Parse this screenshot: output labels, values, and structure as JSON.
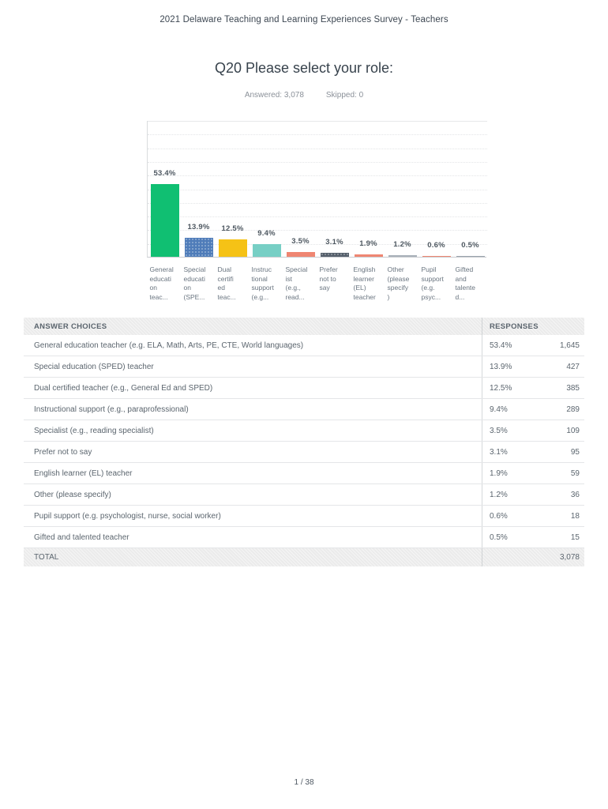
{
  "page": {
    "survey_title": "2021 Delaware Teaching and Learning Experiences Survey - Teachers",
    "question_title": "Q20 Please select your role:",
    "answered_label": "Answered: 3,078",
    "skipped_label": "Skipped: 0",
    "footer_page_number": "1 / 38"
  },
  "chart_data": {
    "type": "bar",
    "title": "Q20 Please select your role:",
    "categories": [
      "General education teacher (e.g. ELA, Math, Arts, PE, CTE, World languages)",
      "Special education (SPED) teacher",
      "Dual certified teacher (e.g., General Ed and SPED)",
      "Instructional support (e.g., paraprofessional)",
      "Specialist (e.g., reading specialist)",
      "Prefer not to say",
      "English learner (EL) teacher",
      "Other (please specify)",
      "Pupil support (e.g. psychologist, nurse, social worker)",
      "Gifted and talented teacher"
    ],
    "tick_labels": [
      "General\neducati\non\nteac...",
      "Special\neducati\non\n(SPE...",
      "Dual\ncertifi\ned\nteac...",
      "Instruc\ntional\nsupport\n(e.g...",
      "Special\nist\n(e.g.,\nread...",
      "Prefer\nnot to\nsay",
      "English\nlearner\n(EL)\nteacher",
      "Other\n(please\nspecify\n)",
      "Pupil\nsupport\n(e.g.\npsyc...",
      "Gifted\nand\ntalente\nd..."
    ],
    "values": [
      53.4,
      13.9,
      12.5,
      9.4,
      3.5,
      3.1,
      1.9,
      1.2,
      0.6,
      0.5
    ],
    "colors": [
      "#10bf72",
      "#4f7cb9",
      "#f5c216",
      "#77cfc5",
      "#ef8672",
      "#555f6b",
      "#ef8672",
      "#a9b1b9",
      "#ef8672",
      "#9aa3ac"
    ],
    "patterned_bars": [
      1,
      5
    ],
    "xlabel": "",
    "ylabel": "",
    "ylim": [
      0,
      100
    ],
    "y_tick_step": 20,
    "grid_step": 10,
    "grid": true,
    "legend": false
  },
  "table": {
    "header_answer": "ANSWER CHOICES",
    "header_responses": "RESPONSES",
    "rows": [
      {
        "answer": "General education teacher (e.g. ELA, Math, Arts, PE, CTE, World languages)",
        "percent": "53.4%",
        "count": "1,645"
      },
      {
        "answer": "Special education (SPED) teacher",
        "percent": "13.9%",
        "count": "427"
      },
      {
        "answer": "Dual certified teacher (e.g., General Ed and SPED)",
        "percent": "12.5%",
        "count": "385"
      },
      {
        "answer": "Instructional support (e.g., paraprofessional)",
        "percent": "9.4%",
        "count": "289"
      },
      {
        "answer": "Specialist (e.g., reading specialist)",
        "percent": "3.5%",
        "count": "109"
      },
      {
        "answer": "Prefer not to say",
        "percent": "3.1%",
        "count": "95"
      },
      {
        "answer": "English learner (EL) teacher",
        "percent": "1.9%",
        "count": "59"
      },
      {
        "answer": "Other (please specify)",
        "percent": "1.2%",
        "count": "36"
      },
      {
        "answer": "Pupil support (e.g. psychologist, nurse, social worker)",
        "percent": "0.6%",
        "count": "18"
      },
      {
        "answer": "Gifted and talented teacher",
        "percent": "0.5%",
        "count": "15"
      }
    ],
    "total_label": "TOTAL",
    "total_count": "3,078"
  }
}
